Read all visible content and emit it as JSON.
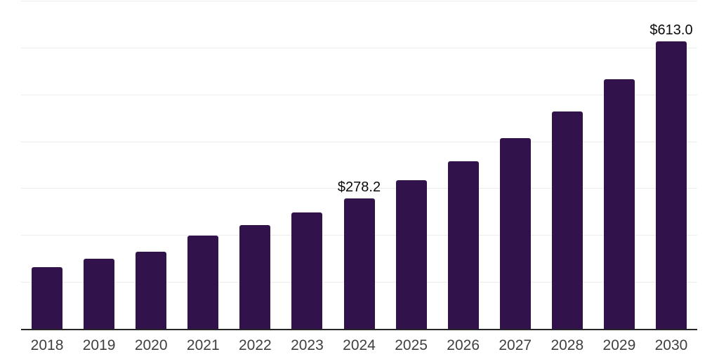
{
  "chart_data": {
    "type": "bar",
    "categories": [
      "2018",
      "2019",
      "2020",
      "2021",
      "2022",
      "2023",
      "2024",
      "2025",
      "2026",
      "2027",
      "2028",
      "2029",
      "2030"
    ],
    "values": [
      132,
      149,
      165,
      199,
      222,
      249,
      278.2,
      317,
      358,
      407,
      464,
      533,
      613
    ],
    "data_labels": [
      "",
      "",
      "",
      "",
      "",
      "",
      "$278.2",
      "",
      "",
      "",
      "",
      "",
      "$613.0"
    ],
    "title": "",
    "xlabel": "",
    "ylabel": "",
    "ylim": [
      0,
      700
    ],
    "gridline_values": [
      100,
      200,
      300,
      400,
      500,
      600,
      700
    ],
    "grid": true,
    "legend": "none",
    "value_prefix": "$"
  },
  "style": {
    "bar_color": "#31124a",
    "grid_color": "#ededed",
    "axis_color": "#262626",
    "tick_label_color": "#404040",
    "data_label_color": "#0a0a0a",
    "background": "#ffffff"
  }
}
